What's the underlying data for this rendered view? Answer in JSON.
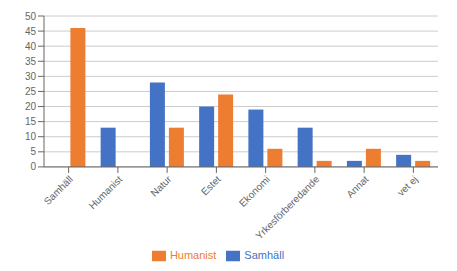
{
  "chart_data": {
    "type": "bar",
    "categories": [
      "Samhäll",
      "Humanist",
      "Natur",
      "Estet",
      "Ekonomi",
      "Yrkesförberedande",
      "Annat",
      "vet ej"
    ],
    "series": [
      {
        "name": "Samhäll",
        "color": "#4472C4",
        "values": [
          0,
          13,
          28,
          20,
          19,
          13,
          2,
          4
        ]
      },
      {
        "name": "Humanist",
        "color": "#ED7D31",
        "values": [
          46,
          0,
          13,
          24,
          6,
          2,
          6,
          2
        ]
      }
    ],
    "ylim": [
      0,
      50
    ],
    "yticks": [
      0,
      5,
      10,
      15,
      20,
      25,
      30,
      35,
      40,
      45,
      50
    ],
    "grid": true,
    "legend": "bottom"
  }
}
